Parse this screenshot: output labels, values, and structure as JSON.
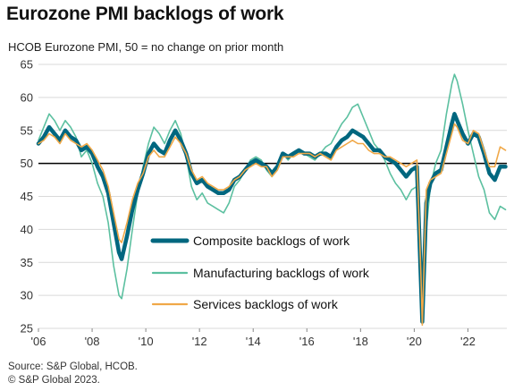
{
  "title": "Eurozone PMI backlogs of work",
  "subtitle": "HCOB Eurozone PMI, 50 = no change on prior month",
  "source": [
    "Source: S&P Global, HCOB.",
    "© S&P Global 2023."
  ],
  "chart_data": {
    "type": "line",
    "ylim": [
      25,
      65
    ],
    "yticks": [
      25,
      30,
      35,
      40,
      45,
      50,
      55,
      60,
      65
    ],
    "xlim": [
      2006.0,
      2023.45
    ],
    "xticks": [
      {
        "value": 2006,
        "label": "'06"
      },
      {
        "value": 2008,
        "label": "'08"
      },
      {
        "value": 2010,
        "label": "'10"
      },
      {
        "value": 2012,
        "label": "'12"
      },
      {
        "value": 2014,
        "label": "'14"
      },
      {
        "value": 2016,
        "label": "'16"
      },
      {
        "value": 2018,
        "label": "'18"
      },
      {
        "value": 2020,
        "label": "'20"
      },
      {
        "value": 2022,
        "label": "'22"
      }
    ],
    "reference_line": 50,
    "grid": "horizontal",
    "legend_position": "center-bottom",
    "series": [
      {
        "name": "Composite backlogs of work",
        "color": "#00677f",
        "x": [
          2006.0,
          2006.2,
          2006.4,
          2006.6,
          2006.8,
          2007.0,
          2007.2,
          2007.4,
          2007.6,
          2007.8,
          2008.0,
          2008.2,
          2008.4,
          2008.6,
          2008.8,
          2009.0,
          2009.1,
          2009.3,
          2009.5,
          2009.7,
          2009.9,
          2010.1,
          2010.3,
          2010.5,
          2010.7,
          2010.9,
          2011.1,
          2011.3,
          2011.5,
          2011.7,
          2011.9,
          2012.1,
          2012.3,
          2012.5,
          2012.7,
          2012.9,
          2013.1,
          2013.3,
          2013.5,
          2013.7,
          2013.9,
          2014.1,
          2014.3,
          2014.5,
          2014.7,
          2014.9,
          2015.1,
          2015.3,
          2015.5,
          2015.7,
          2015.9,
          2016.1,
          2016.3,
          2016.5,
          2016.7,
          2016.9,
          2017.1,
          2017.3,
          2017.5,
          2017.7,
          2017.9,
          2018.1,
          2018.3,
          2018.5,
          2018.7,
          2018.9,
          2019.1,
          2019.3,
          2019.5,
          2019.7,
          2019.9,
          2020.1,
          2020.25,
          2020.3,
          2020.45,
          2020.6,
          2020.8,
          2021.0,
          2021.2,
          2021.4,
          2021.5,
          2021.6,
          2021.8,
          2022.0,
          2022.2,
          2022.4,
          2022.6,
          2022.8,
          2023.0,
          2023.2,
          2023.4
        ],
        "y": [
          53.0,
          54.0,
          55.5,
          54.5,
          53.5,
          55.0,
          54.0,
          53.5,
          52.0,
          52.5,
          51.5,
          49.5,
          48.0,
          45.5,
          41.0,
          36.5,
          35.5,
          39.0,
          43.0,
          46.0,
          48.5,
          51.5,
          53.0,
          52.0,
          51.5,
          53.5,
          55.0,
          53.5,
          51.5,
          48.5,
          47.0,
          47.5,
          46.5,
          46.0,
          45.5,
          45.5,
          46.0,
          47.5,
          48.0,
          49.0,
          50.0,
          50.5,
          50.0,
          49.5,
          48.5,
          49.5,
          51.5,
          51.0,
          51.5,
          52.0,
          51.5,
          51.5,
          51.0,
          51.5,
          51.5,
          51.0,
          52.5,
          53.5,
          54.0,
          55.0,
          54.5,
          54.0,
          53.0,
          52.0,
          52.0,
          51.0,
          50.5,
          50.0,
          49.0,
          48.0,
          49.0,
          49.5,
          32.0,
          26.0,
          44.0,
          47.0,
          48.5,
          49.0,
          52.5,
          56.0,
          57.5,
          56.5,
          54.5,
          53.0,
          54.5,
          54.0,
          51.5,
          48.5,
          47.5,
          49.5,
          49.5
        ]
      },
      {
        "name": "Manufacturing backlogs of work",
        "color": "#5cc0a0",
        "x": [
          2006.0,
          2006.2,
          2006.4,
          2006.6,
          2006.8,
          2007.0,
          2007.2,
          2007.4,
          2007.6,
          2007.8,
          2008.0,
          2008.2,
          2008.4,
          2008.6,
          2008.8,
          2009.0,
          2009.1,
          2009.3,
          2009.5,
          2009.7,
          2009.9,
          2010.1,
          2010.3,
          2010.5,
          2010.7,
          2010.9,
          2011.1,
          2011.3,
          2011.5,
          2011.7,
          2011.9,
          2012.1,
          2012.3,
          2012.5,
          2012.7,
          2012.9,
          2013.1,
          2013.3,
          2013.5,
          2013.7,
          2013.9,
          2014.1,
          2014.3,
          2014.5,
          2014.7,
          2014.9,
          2015.1,
          2015.3,
          2015.5,
          2015.7,
          2015.9,
          2016.1,
          2016.3,
          2016.5,
          2016.7,
          2016.9,
          2017.1,
          2017.3,
          2017.5,
          2017.7,
          2017.9,
          2018.1,
          2018.3,
          2018.5,
          2018.7,
          2018.9,
          2019.1,
          2019.3,
          2019.5,
          2019.7,
          2019.9,
          2020.1,
          2020.25,
          2020.3,
          2020.45,
          2020.6,
          2020.8,
          2021.0,
          2021.2,
          2021.4,
          2021.5,
          2021.6,
          2021.8,
          2022.0,
          2022.2,
          2022.4,
          2022.6,
          2022.8,
          2023.0,
          2023.2,
          2023.4
        ],
        "y": [
          53.5,
          55.5,
          57.5,
          56.5,
          55.0,
          56.5,
          55.5,
          54.0,
          51.0,
          52.0,
          50.0,
          47.0,
          45.0,
          41.0,
          34.5,
          30.0,
          29.5,
          34.0,
          40.0,
          45.5,
          49.5,
          53.0,
          55.5,
          54.5,
          53.0,
          55.0,
          56.5,
          54.5,
          51.0,
          46.5,
          44.5,
          45.5,
          44.0,
          43.5,
          43.0,
          42.5,
          44.0,
          46.5,
          47.5,
          49.0,
          50.5,
          51.0,
          50.5,
          49.0,
          48.0,
          49.0,
          51.5,
          50.5,
          51.5,
          52.0,
          51.5,
          51.0,
          50.5,
          51.5,
          52.5,
          53.0,
          54.5,
          56.0,
          57.0,
          58.5,
          59.0,
          57.0,
          55.0,
          53.0,
          52.0,
          50.5,
          48.5,
          47.0,
          46.0,
          44.5,
          46.0,
          46.5,
          30.0,
          26.5,
          40.0,
          46.5,
          50.0,
          52.0,
          57.5,
          62.0,
          63.5,
          62.5,
          59.0,
          55.0,
          51.5,
          48.0,
          46.0,
          42.5,
          41.5,
          43.5,
          43.0
        ]
      },
      {
        "name": "Services backlogs of work",
        "color": "#f0a848",
        "x": [
          2006.0,
          2006.2,
          2006.4,
          2006.6,
          2006.8,
          2007.0,
          2007.2,
          2007.4,
          2007.6,
          2007.8,
          2008.0,
          2008.2,
          2008.4,
          2008.6,
          2008.8,
          2009.0,
          2009.1,
          2009.3,
          2009.5,
          2009.7,
          2009.9,
          2010.1,
          2010.3,
          2010.5,
          2010.7,
          2010.9,
          2011.1,
          2011.3,
          2011.5,
          2011.7,
          2011.9,
          2012.1,
          2012.3,
          2012.5,
          2012.7,
          2012.9,
          2013.1,
          2013.3,
          2013.5,
          2013.7,
          2013.9,
          2014.1,
          2014.3,
          2014.5,
          2014.7,
          2014.9,
          2015.1,
          2015.3,
          2015.5,
          2015.7,
          2015.9,
          2016.1,
          2016.3,
          2016.5,
          2016.7,
          2016.9,
          2017.1,
          2017.3,
          2017.5,
          2017.7,
          2017.9,
          2018.1,
          2018.3,
          2018.5,
          2018.7,
          2018.9,
          2019.1,
          2019.3,
          2019.5,
          2019.7,
          2019.9,
          2020.1,
          2020.25,
          2020.3,
          2020.45,
          2020.6,
          2020.8,
          2021.0,
          2021.2,
          2021.4,
          2021.5,
          2021.6,
          2021.8,
          2022.0,
          2022.2,
          2022.4,
          2022.6,
          2022.8,
          2023.0,
          2023.2,
          2023.4
        ],
        "y": [
          53.0,
          53.5,
          54.5,
          54.0,
          53.0,
          54.5,
          53.5,
          53.0,
          52.5,
          53.0,
          52.0,
          50.5,
          49.0,
          46.5,
          42.5,
          38.5,
          38.0,
          41.0,
          44.5,
          47.0,
          48.5,
          51.0,
          52.0,
          51.0,
          51.0,
          52.5,
          54.0,
          53.0,
          51.5,
          49.0,
          47.5,
          48.0,
          47.0,
          46.5,
          46.0,
          46.0,
          46.5,
          47.5,
          48.0,
          49.0,
          49.5,
          50.0,
          49.5,
          49.5,
          48.0,
          49.0,
          51.0,
          51.0,
          51.0,
          51.5,
          51.5,
          51.5,
          51.0,
          51.5,
          51.0,
          50.5,
          52.0,
          52.5,
          53.0,
          53.5,
          53.0,
          53.0,
          52.0,
          51.5,
          51.5,
          51.0,
          51.0,
          50.5,
          50.0,
          49.5,
          50.0,
          50.5,
          33.0,
          25.5,
          46.0,
          47.5,
          48.0,
          48.5,
          51.5,
          54.5,
          56.0,
          55.5,
          53.5,
          53.0,
          55.0,
          54.5,
          52.0,
          49.5,
          49.5,
          52.5,
          52.0
        ]
      }
    ]
  }
}
